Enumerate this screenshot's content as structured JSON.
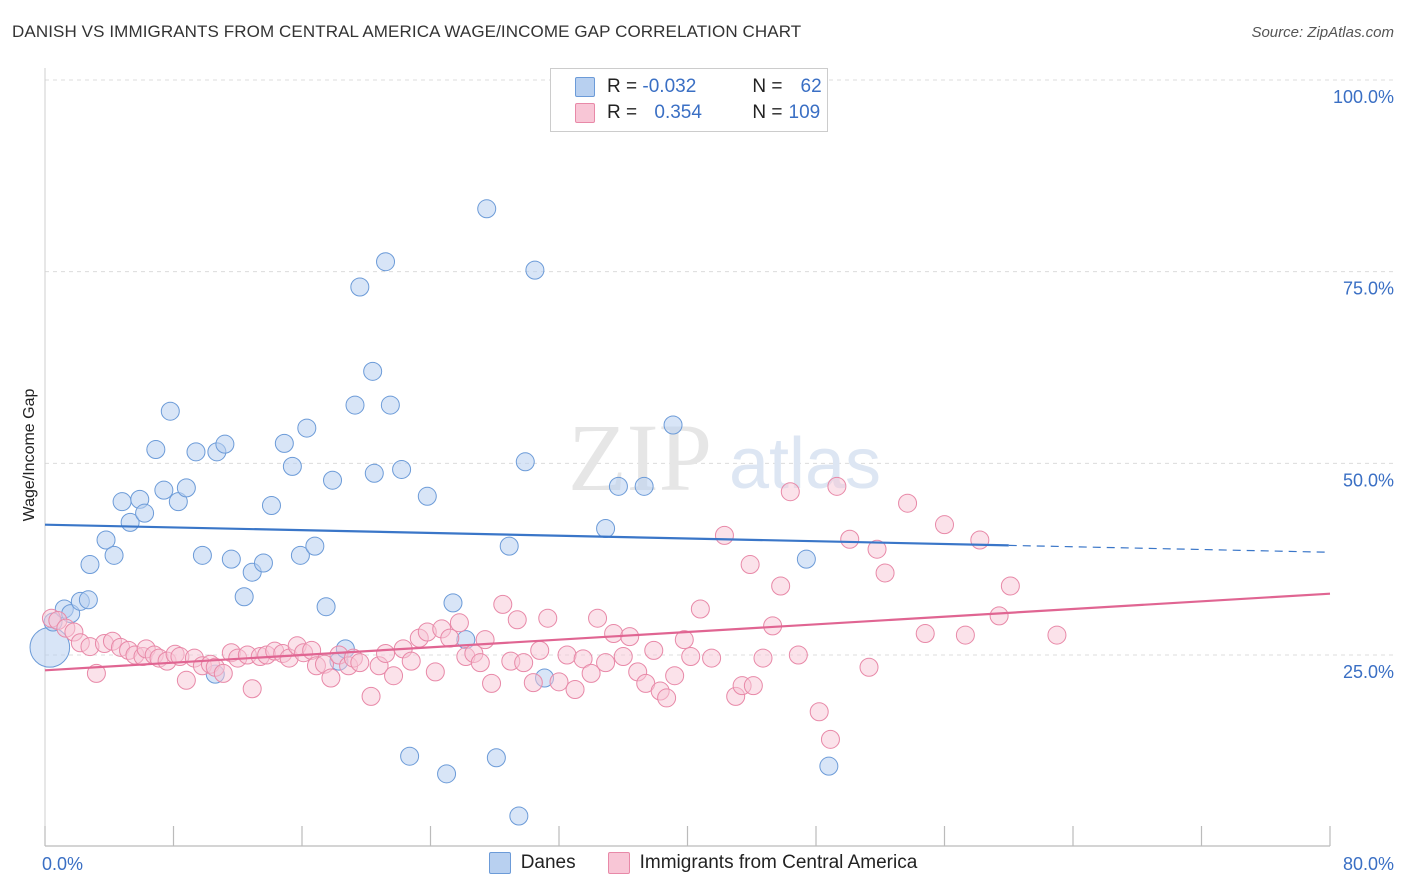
{
  "title": "DANISH VS IMMIGRANTS FROM CENTRAL AMERICA WAGE/INCOME GAP CORRELATION CHART",
  "source": "Source: ZipAtlas.com",
  "watermark": {
    "zip": "ZIP",
    "atlas": "atlas"
  },
  "colors": {
    "danes_fill": "#b8d0f0",
    "danes_stroke": "#6c9bd8",
    "danes_line": "#3a76c8",
    "imm_fill": "#f8c6d6",
    "imm_stroke": "#e889a8",
    "imm_line": "#e06592",
    "tick_label": "#3a6fc4",
    "grid": "#dcdcdc"
  },
  "legend": {
    "rows": [
      {
        "r_label": "R =",
        "r_value": "-0.032",
        "n_label": "N =",
        "n_value": "62"
      },
      {
        "r_label": "R =",
        "r_value": "0.354",
        "n_label": "N =",
        "n_value": "109"
      }
    ]
  },
  "chart_data": {
    "type": "scatter",
    "title": "DANISH VS IMMIGRANTS FROM CENTRAL AMERICA WAGE/INCOME GAP CORRELATION CHART",
    "xlabel": "",
    "ylabel": "Wage/Income Gap",
    "xlim": [
      0,
      80
    ],
    "ylim": [
      0,
      105
    ],
    "x_tick_labels": [
      "0.0%",
      "80.0%"
    ],
    "y_ticks": [
      25,
      50,
      75,
      100
    ],
    "y_tick_labels": [
      "25.0%",
      "50.0%",
      "75.0%",
      "100.0%"
    ],
    "grid": true,
    "legend_position": "top-center",
    "series": [
      {
        "name": "Danes",
        "trend": {
          "x0": 0,
          "y0": 42.0,
          "x1": 60,
          "y1": 39.3,
          "dash_to_x": 80,
          "dash_to_y": 38.4
        },
        "points": [
          [
            0.3,
            26.0,
            2.2
          ],
          [
            0.5,
            29.3,
            1
          ],
          [
            1.2,
            31.0,
            1
          ],
          [
            1.6,
            30.4,
            1
          ],
          [
            2.2,
            32.0,
            1
          ],
          [
            2.7,
            32.2,
            1
          ],
          [
            2.8,
            36.8,
            1
          ],
          [
            3.8,
            40.0,
            1
          ],
          [
            4.3,
            38.0,
            1
          ],
          [
            4.8,
            45.0,
            1
          ],
          [
            5.3,
            42.3,
            1
          ],
          [
            5.9,
            45.3,
            1
          ],
          [
            6.2,
            43.5,
            1
          ],
          [
            6.9,
            51.8,
            1
          ],
          [
            7.4,
            46.5,
            1
          ],
          [
            7.8,
            56.8,
            1
          ],
          [
            8.3,
            45.0,
            1
          ],
          [
            8.8,
            46.8,
            1
          ],
          [
            9.4,
            51.5,
            1
          ],
          [
            9.8,
            38.0,
            1
          ],
          [
            10.7,
            51.5,
            1
          ],
          [
            11.2,
            52.5,
            1
          ],
          [
            11.6,
            37.5,
            1
          ],
          [
            12.4,
            32.6,
            1
          ],
          [
            12.9,
            35.8,
            1
          ],
          [
            13.6,
            37.0,
            1
          ],
          [
            14.1,
            44.5,
            1
          ],
          [
            14.9,
            52.6,
            1
          ],
          [
            15.4,
            49.6,
            1
          ],
          [
            15.9,
            38.0,
            1
          ],
          [
            16.3,
            54.6,
            1
          ],
          [
            16.8,
            39.2,
            1
          ],
          [
            17.5,
            31.3,
            1
          ],
          [
            17.9,
            47.8,
            1
          ],
          [
            18.3,
            24.2,
            1
          ],
          [
            18.7,
            25.8,
            1
          ],
          [
            19.3,
            57.6,
            1
          ],
          [
            19.6,
            73.0,
            1
          ],
          [
            20.4,
            62.0,
            1
          ],
          [
            20.5,
            48.7,
            1
          ],
          [
            21.2,
            76.3,
            1
          ],
          [
            21.5,
            57.6,
            1
          ],
          [
            22.2,
            49.2,
            1
          ],
          [
            22.7,
            11.8,
            1
          ],
          [
            23.8,
            45.7,
            1
          ],
          [
            25.0,
            9.5,
            1
          ],
          [
            25.4,
            31.8,
            1
          ],
          [
            26.2,
            27.0,
            1
          ],
          [
            27.5,
            83.2,
            1
          ],
          [
            28.1,
            11.6,
            1
          ],
          [
            28.9,
            39.2,
            1
          ],
          [
            29.5,
            4.0,
            1
          ],
          [
            29.9,
            50.2,
            1
          ],
          [
            30.5,
            75.2,
            1
          ],
          [
            31.1,
            22.0,
            1
          ],
          [
            34.9,
            41.5,
            1
          ],
          [
            35.7,
            47.0,
            1
          ],
          [
            37.3,
            47.0,
            1
          ],
          [
            39.1,
            55.0,
            1
          ],
          [
            47.4,
            37.5,
            1
          ],
          [
            48.8,
            10.5,
            1
          ],
          [
            10.6,
            22.5,
            1
          ]
        ]
      },
      {
        "name": "Immigrants from Central America",
        "trend": {
          "x0": 0,
          "y0": 23.0,
          "x1": 80,
          "y1": 33.0
        },
        "points": [
          [
            0.4,
            29.8,
            1
          ],
          [
            0.8,
            29.5,
            1
          ],
          [
            1.3,
            28.5,
            1
          ],
          [
            1.8,
            28.0,
            1
          ],
          [
            2.2,
            26.6,
            1
          ],
          [
            2.8,
            26.1,
            1
          ],
          [
            3.2,
            22.6,
            1
          ],
          [
            3.7,
            26.5,
            1
          ],
          [
            4.2,
            26.8,
            1
          ],
          [
            4.7,
            26.0,
            1
          ],
          [
            5.2,
            25.6,
            1
          ],
          [
            5.6,
            25.0,
            1
          ],
          [
            6.1,
            24.8,
            1
          ],
          [
            6.3,
            25.8,
            1
          ],
          [
            6.8,
            25.0,
            1
          ],
          [
            7.1,
            24.6,
            1
          ],
          [
            7.6,
            24.2,
            1
          ],
          [
            8.1,
            25.1,
            1
          ],
          [
            8.4,
            24.8,
            1
          ],
          [
            8.8,
            21.7,
            1
          ],
          [
            9.3,
            24.6,
            1
          ],
          [
            9.8,
            23.6,
            1
          ],
          [
            10.3,
            23.8,
            1
          ],
          [
            10.6,
            23.4,
            1
          ],
          [
            11.1,
            22.6,
            1
          ],
          [
            11.6,
            25.3,
            1
          ],
          [
            12.0,
            24.6,
            1
          ],
          [
            12.6,
            25.0,
            1
          ],
          [
            12.9,
            20.6,
            1
          ],
          [
            13.4,
            24.8,
            1
          ],
          [
            13.8,
            25.0,
            1
          ],
          [
            14.3,
            25.5,
            1
          ],
          [
            14.8,
            25.2,
            1
          ],
          [
            15.2,
            24.6,
            1
          ],
          [
            15.7,
            26.2,
            1
          ],
          [
            16.1,
            25.3,
            1
          ],
          [
            16.6,
            25.6,
            1
          ],
          [
            16.9,
            23.6,
            1
          ],
          [
            17.4,
            23.8,
            1
          ],
          [
            17.8,
            22.0,
            1
          ],
          [
            18.3,
            25.0,
            1
          ],
          [
            18.9,
            23.6,
            1
          ],
          [
            19.2,
            24.6,
            1
          ],
          [
            19.6,
            24.0,
            1
          ],
          [
            20.3,
            19.6,
            1
          ],
          [
            20.8,
            23.6,
            1
          ],
          [
            21.2,
            25.2,
            1
          ],
          [
            21.7,
            22.3,
            1
          ],
          [
            22.3,
            25.8,
            1
          ],
          [
            22.8,
            24.2,
            1
          ],
          [
            23.3,
            27.2,
            1
          ],
          [
            23.8,
            28.0,
            1
          ],
          [
            24.3,
            22.8,
            1
          ],
          [
            24.7,
            28.4,
            1
          ],
          [
            25.2,
            27.2,
            1
          ],
          [
            25.8,
            29.2,
            1
          ],
          [
            26.2,
            24.8,
            1
          ],
          [
            26.7,
            25.2,
            1
          ],
          [
            27.1,
            24.0,
            1
          ],
          [
            27.4,
            27.0,
            1
          ],
          [
            27.8,
            21.3,
            1
          ],
          [
            28.5,
            31.6,
            1
          ],
          [
            29.0,
            24.2,
            1
          ],
          [
            29.4,
            29.6,
            1
          ],
          [
            29.8,
            24.0,
            1
          ],
          [
            30.4,
            21.4,
            1
          ],
          [
            30.8,
            25.6,
            1
          ],
          [
            31.3,
            29.8,
            1
          ],
          [
            32.0,
            21.5,
            1
          ],
          [
            32.5,
            25.0,
            1
          ],
          [
            33.0,
            20.5,
            1
          ],
          [
            33.5,
            24.5,
            1
          ],
          [
            34.0,
            22.6,
            1
          ],
          [
            34.4,
            29.8,
            1
          ],
          [
            34.9,
            24.0,
            1
          ],
          [
            35.4,
            27.8,
            1
          ],
          [
            36.0,
            24.8,
            1
          ],
          [
            36.4,
            27.4,
            1
          ],
          [
            36.9,
            22.8,
            1
          ],
          [
            37.4,
            21.3,
            1
          ],
          [
            37.9,
            25.6,
            1
          ],
          [
            38.3,
            20.3,
            1
          ],
          [
            38.7,
            19.4,
            1
          ],
          [
            39.2,
            22.3,
            1
          ],
          [
            39.8,
            27.0,
            1
          ],
          [
            40.2,
            24.8,
            1
          ],
          [
            40.8,
            31.0,
            1
          ],
          [
            41.5,
            24.6,
            1
          ],
          [
            42.3,
            40.6,
            1
          ],
          [
            43.0,
            19.6,
            1
          ],
          [
            43.4,
            21.0,
            1
          ],
          [
            43.9,
            36.8,
            1
          ],
          [
            44.1,
            21.0,
            1
          ],
          [
            44.7,
            24.6,
            1
          ],
          [
            45.3,
            28.8,
            1
          ],
          [
            45.8,
            34.0,
            1
          ],
          [
            46.4,
            46.3,
            1
          ],
          [
            46.9,
            25.0,
            1
          ],
          [
            48.2,
            17.6,
            1
          ],
          [
            48.9,
            14.0,
            1
          ],
          [
            49.3,
            47.0,
            1
          ],
          [
            50.1,
            40.1,
            1
          ],
          [
            51.3,
            23.4,
            1
          ],
          [
            51.8,
            38.8,
            1
          ],
          [
            52.3,
            35.7,
            1
          ],
          [
            53.7,
            44.8,
            1
          ],
          [
            54.8,
            27.8,
            1
          ],
          [
            56.0,
            42.0,
            1
          ],
          [
            57.3,
            27.6,
            1
          ],
          [
            58.2,
            40.0,
            1
          ],
          [
            59.4,
            30.1,
            1
          ],
          [
            60.1,
            34.0,
            1
          ],
          [
            63.0,
            27.6,
            1
          ]
        ]
      }
    ]
  },
  "bottom_legend": [
    "Danes",
    "Immigrants from Central America"
  ]
}
